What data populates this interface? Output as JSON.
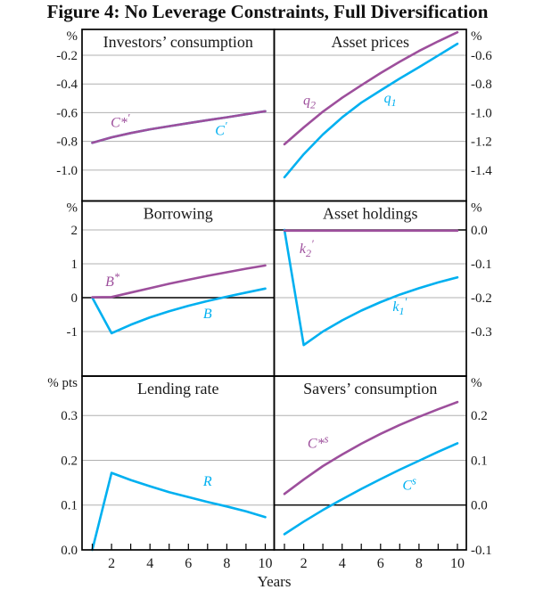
{
  "chart_data": {
    "type": "line",
    "title": "Figure 4: No Leverage Constraints, Full Diversification",
    "xlabel": "Years",
    "x": [
      1,
      2,
      3,
      4,
      5,
      6,
      7,
      8,
      9,
      10
    ],
    "x_ticks": [
      2,
      4,
      6,
      8,
      10
    ],
    "colors": {
      "purple": "#9d4f9c",
      "cyan": "#00b0f0",
      "grid": "#b0b0b0",
      "axis": "#000000",
      "text": "#1a1a1a"
    },
    "layout": {
      "grid": true,
      "panels_grid": "3 rows x 2 cols",
      "legend": "inline-labels"
    },
    "panels": [
      {
        "id": "investors-consumption",
        "title": "Investors’ consumption",
        "unit": "%",
        "row": 0,
        "col": 0,
        "axis": "left",
        "y_top": -0.02,
        "y_bottom": -1.215,
        "ticks": [
          {
            "label": "-0.2",
            "v": -0.2
          },
          {
            "label": "-0.4",
            "v": -0.4
          },
          {
            "label": "-0.6",
            "v": -0.6
          },
          {
            "label": "-0.8",
            "v": -0.8
          },
          {
            "label": "-1.0",
            "v": -1.0
          }
        ],
        "zero_line": false,
        "series": [
          {
            "id": "C-prime",
            "color": "cyan",
            "values": [
              -0.81,
              -0.772,
              -0.742,
              -0.716,
              -0.694,
              -0.673,
              -0.652,
              -0.632,
              -0.611,
              -0.59
            ],
            "label": {
              "main": "C",
              "sub": "",
              "sup": "′",
              "x": 7.7,
              "y": -0.755
            }
          },
          {
            "id": "C-star-prime",
            "color": "purple",
            "values": [
              -0.81,
              -0.772,
              -0.742,
              -0.716,
              -0.694,
              -0.673,
              -0.652,
              -0.632,
              -0.611,
              -0.59
            ],
            "label": {
              "main": "C*",
              "sub": "",
              "sup": "′",
              "x": 2.45,
              "y": -0.7
            }
          }
        ]
      },
      {
        "id": "asset-prices",
        "title": "Asset prices",
        "unit": "%",
        "row": 0,
        "col": 1,
        "axis": "right",
        "y_top": -0.42,
        "y_bottom": -1.615,
        "ticks": [
          {
            "label": "-0.6",
            "v": -0.6
          },
          {
            "label": "-0.8",
            "v": -0.8
          },
          {
            "label": "-1.0",
            "v": -1.0
          },
          {
            "label": "-1.2",
            "v": -1.2
          },
          {
            "label": "-1.4",
            "v": -1.4
          }
        ],
        "zero_line": false,
        "series": [
          {
            "id": "q1",
            "color": "cyan",
            "values": [
              -1.45,
              -1.29,
              -1.152,
              -1.033,
              -0.93,
              -0.845,
              -0.762,
              -0.683,
              -0.602,
              -0.52
            ],
            "label": {
              "main": "q",
              "sub": "1",
              "sup": "",
              "x": 6.5,
              "y": -0.93
            }
          },
          {
            "id": "q2",
            "color": "purple",
            "values": [
              -1.22,
              -1.103,
              -0.993,
              -0.896,
              -0.809,
              -0.724,
              -0.645,
              -0.57,
              -0.503,
              -0.44
            ],
            "label": {
              "main": "q",
              "sub": "2",
              "sup": "",
              "x": 2.3,
              "y": -0.945
            }
          }
        ]
      },
      {
        "id": "borrowing",
        "title": "Borrowing",
        "unit": "%",
        "row": 1,
        "col": 0,
        "axis": "left",
        "y_top": 2.855,
        "y_bottom": -2.315,
        "ticks": [
          {
            "label": "2",
            "v": 2
          },
          {
            "label": "1",
            "v": 1
          },
          {
            "label": "0",
            "v": 0
          },
          {
            "label": "-1",
            "v": -1
          }
        ],
        "zero_line": true,
        "series": [
          {
            "id": "B",
            "color": "cyan",
            "values": [
              0,
              -1.05,
              -0.8,
              -0.58,
              -0.4,
              -0.24,
              -0.1,
              0.03,
              0.15,
              0.27
            ],
            "label": {
              "main": "B",
              "sub": "",
              "sup": "",
              "x": 7.0,
              "y": -0.6
            }
          },
          {
            "id": "B-star",
            "color": "purple",
            "values": [
              0.01,
              0.02,
              0.15,
              0.28,
              0.41,
              0.53,
              0.645,
              0.75,
              0.855,
              0.95
            ],
            "label": {
              "main": "B",
              "sub": "",
              "sup": "*",
              "x": 2.05,
              "y": 0.34
            }
          }
        ]
      },
      {
        "id": "asset-holdings",
        "title": "Asset holdings",
        "unit": "%",
        "row": 1,
        "col": 1,
        "axis": "right",
        "y_top": 0.0855,
        "y_bottom": -0.4315,
        "ticks": [
          {
            "label": "0.0",
            "v": 0
          },
          {
            "label": "-0.1",
            "v": -0.1
          },
          {
            "label": "-0.2",
            "v": -0.2
          },
          {
            "label": "-0.3",
            "v": -0.3
          }
        ],
        "zero_line": true,
        "series": [
          {
            "id": "k1-prime",
            "color": "cyan",
            "values": [
              0,
              -0.34,
              -0.3,
              -0.267,
              -0.238,
              -0.213,
              -0.191,
              -0.172,
              -0.155,
              -0.14
            ],
            "label": {
              "main": "k",
              "sub": "1",
              "sup": "′",
              "x": 7.0,
              "y": -0.24
            }
          },
          {
            "id": "k2-prime",
            "color": "purple",
            "values": [
              -0.002,
              -0.002,
              -0.002,
              -0.002,
              -0.002,
              -0.002,
              -0.002,
              -0.002,
              -0.002,
              -0.002
            ],
            "label": {
              "main": "k",
              "sub": "2",
              "sup": "′",
              "x": 2.15,
              "y": -0.068
            }
          }
        ]
      },
      {
        "id": "lending-rate",
        "title": "Lending rate",
        "unit": "% pts",
        "row": 2,
        "col": 0,
        "axis": "left",
        "y_top": 0.388,
        "y_bottom": 0.0,
        "ticks": [
          {
            "label": "0.3",
            "v": 0.3
          },
          {
            "label": "0.2",
            "v": 0.2
          },
          {
            "label": "0.1",
            "v": 0.1
          },
          {
            "label": "0.0",
            "v": 0
          }
        ],
        "zero_line": false,
        "series": [
          {
            "id": "R",
            "color": "cyan",
            "values": [
              0,
              0.172,
              0.156,
              0.142,
              0.129,
              0.118,
              0.107,
              0.097,
              0.086,
              0.073
            ],
            "label": {
              "main": "R",
              "sub": "",
              "sup": "",
              "x": 7.0,
              "y": 0.143
            }
          }
        ]
      },
      {
        "id": "savers-consumption",
        "title": "Savers’ consumption",
        "unit": "%",
        "row": 2,
        "col": 1,
        "axis": "right",
        "y_top": 0.288,
        "y_bottom": -0.1,
        "ticks": [
          {
            "label": "0.2",
            "v": 0.2
          },
          {
            "label": "0.1",
            "v": 0.1
          },
          {
            "label": "0.0",
            "v": 0
          },
          {
            "label": "-0.1",
            "v": -0.1
          }
        ],
        "zero_line": true,
        "series": [
          {
            "id": "C-s",
            "color": "cyan",
            "values": [
              -0.065,
              -0.037,
              -0.011,
              0.013,
              0.036,
              0.058,
              0.079,
              0.099,
              0.119,
              0.138
            ],
            "label": {
              "main": "C",
              "sub": "",
              "sup": "s",
              "x": 7.5,
              "y": 0.034
            }
          },
          {
            "id": "C-star-s",
            "color": "purple",
            "values": [
              0.025,
              0.057,
              0.087,
              0.113,
              0.137,
              0.159,
              0.179,
              0.197,
              0.214,
              0.23
            ],
            "label": {
              "main": "C*",
              "sub": "",
              "sup": "s",
              "x": 2.75,
              "y": 0.128
            }
          }
        ]
      }
    ]
  }
}
